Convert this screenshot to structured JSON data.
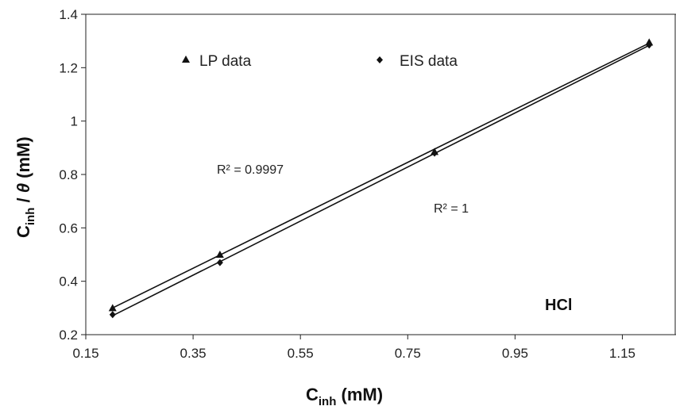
{
  "chart_data": {
    "type": "scatter",
    "title": "",
    "xlabel": "C",
    "xlabel_sub": "inh",
    "xlabel_unit": " (mM)",
    "ylabel_main": "C",
    "ylabel_sub": "inh",
    "ylabel_rest": " / ",
    "ylabel_theta": "θ",
    "ylabel_unit": " (mM)",
    "xlim": [
      0.15,
      1.25
    ],
    "ylim": [
      0.2,
      1.4
    ],
    "x_ticks": [
      "0.15",
      "0.35",
      "0.55",
      "0.75",
      "0.95",
      "1.15"
    ],
    "y_ticks": [
      "0.2",
      "0.4",
      "0.6",
      "0.8",
      "1",
      "1.2",
      "1.4"
    ],
    "grid": false,
    "legend_position": "top",
    "series": [
      {
        "name": "LP data",
        "marker": "triangle",
        "x": [
          0.2,
          0.4,
          0.8,
          1.2
        ],
        "y": [
          0.3,
          0.5,
          0.885,
          1.295
        ],
        "fit": {
          "slope": 0.9917,
          "intercept": 0.1017
        },
        "r2_label": "R² = 0.9997"
      },
      {
        "name": "EIS data",
        "marker": "diamond",
        "x": [
          0.2,
          0.4,
          0.8,
          1.2
        ],
        "y": [
          0.275,
          0.47,
          0.88,
          1.285
        ],
        "fit": {
          "slope": 1.0125,
          "intercept": 0.0685
        },
        "r2_label": "R² = 1"
      }
    ],
    "annotations": [
      {
        "text": "HCl"
      }
    ],
    "colors": {
      "marker": "#111111",
      "line": "#111111",
      "axis": "#222222"
    }
  }
}
